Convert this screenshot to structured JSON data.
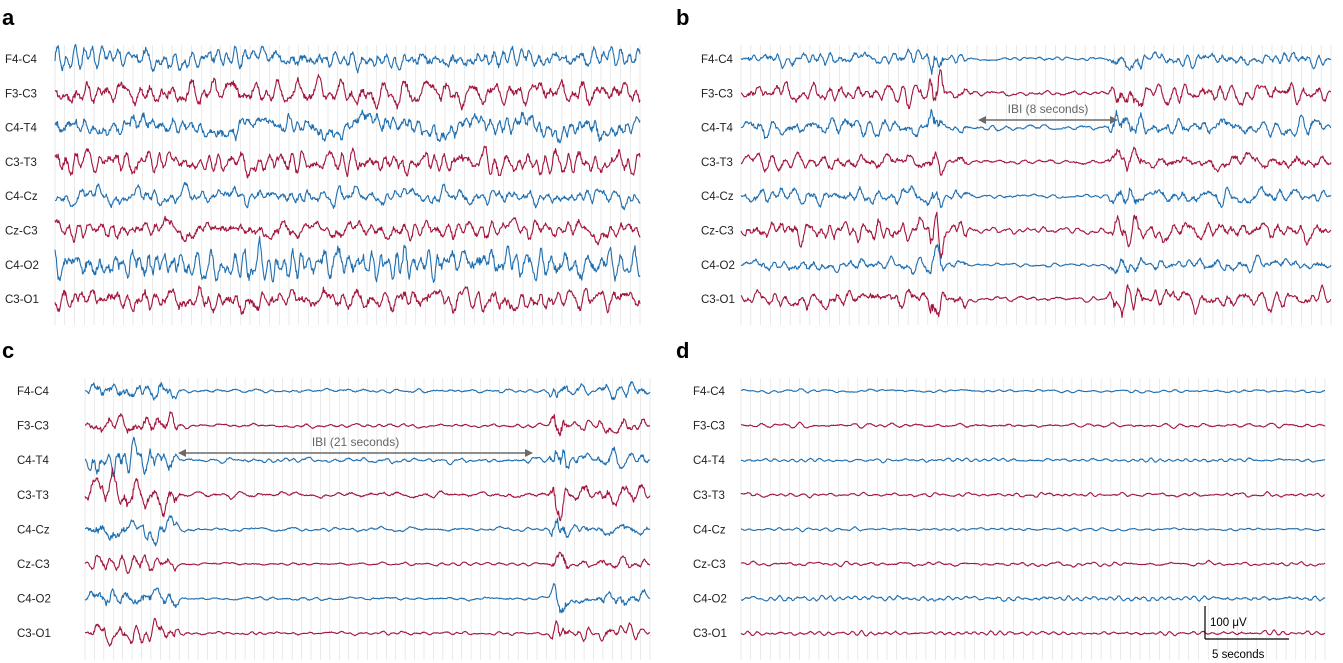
{
  "colors": {
    "blue": "#1f6fb0",
    "red": "#a3153c",
    "grid": "#dcdcdc",
    "ibi": "#6a6a6a"
  },
  "chart_data": [
    {
      "type": "line",
      "panel": "a",
      "channels": [
        "F4-C4",
        "F3-C3",
        "C4-T4",
        "C3-T3",
        "C4-Cz",
        "Cz-C3",
        "C4-O2",
        "C3-O1"
      ],
      "amplitude": [
        1,
        1.05,
        1.1,
        1,
        0.75,
        0.85,
        1.4,
        1.05
      ],
      "annotations": []
    },
    {
      "type": "line",
      "panel": "b",
      "channels": [
        "F4-C4",
        "F3-C3",
        "C4-T4",
        "C3-T3",
        "C4-Cz",
        "Cz-C3",
        "C4-O2",
        "C3-O1"
      ],
      "amplitude": [
        0.55,
        0.75,
        0.75,
        0.7,
        0.65,
        0.8,
        0.55,
        0.75
      ],
      "annotations": [
        {
          "text": "IBI (8 seconds)",
          "channel": "C4-T4"
        }
      ]
    },
    {
      "type": "line",
      "panel": "c",
      "channels": [
        "F4-C4",
        "F3-C3",
        "C4-T4",
        "C3-T3",
        "C4-Cz",
        "Cz-C3",
        "C4-O2",
        "C3-O1"
      ],
      "amplitude": [
        0.6,
        0.55,
        0.7,
        0.8,
        0.6,
        0.45,
        0.6,
        0.5
      ],
      "annotations": [
        {
          "text": "IBI (21 seconds)",
          "channel": "C4-T4"
        }
      ]
    },
    {
      "type": "line",
      "panel": "d",
      "channels": [
        "F4-C4",
        "F3-C3",
        "C4-T4",
        "C3-T3",
        "C4-Cz",
        "Cz-C3",
        "C4-O2",
        "C3-O1"
      ],
      "amplitude": [
        0.12,
        0.15,
        0.15,
        0.15,
        0.12,
        0.15,
        0.2,
        0.15
      ],
      "annotations": [],
      "scale_bar": {
        "amplitude_label": "100  μV",
        "time_label": "5 seconds"
      }
    }
  ]
}
